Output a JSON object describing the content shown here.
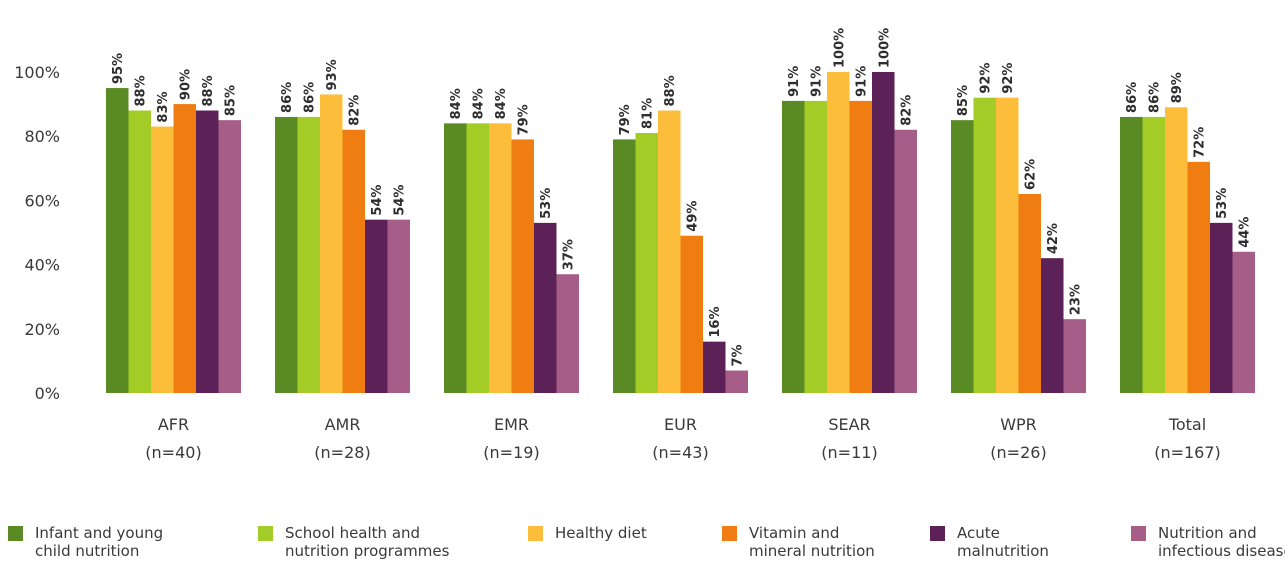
{
  "chart_data": {
    "type": "bar",
    "categories": [
      [
        "AFR",
        "(n=40)"
      ],
      [
        "AMR",
        "(n=28)"
      ],
      [
        "EMR",
        "(n=19)"
      ],
      [
        "EUR",
        "(n=43)"
      ],
      [
        "SEAR",
        "(n=11)"
      ],
      [
        "WPR",
        "(n=26)"
      ],
      [
        "Total",
        "(n=167)"
      ]
    ],
    "series": [
      {
        "name": "Infant and young\nchild nutrition",
        "color": "#5a8a23",
        "values": [
          95,
          86,
          84,
          79,
          91,
          85,
          86
        ]
      },
      {
        "name": "School health and\nnutrition programmes",
        "color": "#a3cc26",
        "values": [
          88,
          86,
          84,
          81,
          91,
          92,
          86
        ]
      },
      {
        "name": "Healthy diet",
        "color": "#fbbd3a",
        "values": [
          83,
          93,
          84,
          88,
          100,
          92,
          89
        ]
      },
      {
        "name": "Vitamin and\nmineral nutrition",
        "color": "#ef7d12",
        "values": [
          90,
          82,
          79,
          49,
          91,
          62,
          72
        ]
      },
      {
        "name": "Acute\nmalnutrition",
        "color": "#5c2157",
        "values": [
          88,
          54,
          53,
          16,
          100,
          42,
          53
        ]
      },
      {
        "name": "Nutrition and\ninfectious disease",
        "color": "#a65e88",
        "values": [
          85,
          54,
          37,
          7,
          82,
          23,
          44
        ]
      }
    ],
    "yticks": [
      "0%",
      "20%",
      "40%",
      "60%",
      "80%",
      "100%"
    ],
    "ylim": [
      0,
      100
    ],
    "value_suffix": "%",
    "grid": false,
    "legend_position": "bottom"
  }
}
